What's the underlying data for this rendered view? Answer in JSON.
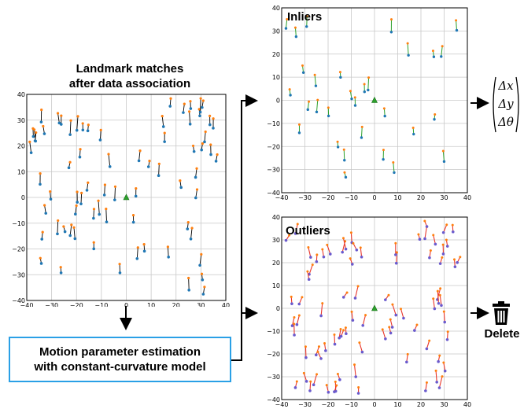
{
  "title": {
    "line1": "Landmark matches",
    "line2": "after data association"
  },
  "motion_box": {
    "line1": "Motion parameter estimation",
    "line2": "with constant-curvature model"
  },
  "inliers_label": "Inliers",
  "outliers_label": "Outliers",
  "output_vector": {
    "row1": "Δx",
    "row2": "Δy",
    "row3": "Δθ"
  },
  "delete_label": "Delete",
  "icons": {
    "trash": "trash-icon"
  },
  "colors": {
    "arrow_orange": "#ff7f0e",
    "point_blue": "#1f77b4",
    "inlier_green": "#2ca02c",
    "outlier_red": "#e8352a",
    "outlier_purple": "#6a5acd",
    "box_blue": "#2aa0e6"
  },
  "chart_data": [
    {
      "type": "scatter",
      "title": "Landmark matches after data association",
      "xlim": [
        -40,
        40
      ],
      "ylim": [
        -40,
        40
      ],
      "xticks": [
        -40,
        -30,
        -20,
        -10,
        0,
        10,
        20,
        30,
        40
      ],
      "yticks": [
        -40,
        -30,
        -20,
        -10,
        0,
        10,
        20,
        30,
        40
      ],
      "grid": true
    },
    {
      "type": "scatter",
      "title": "Inliers",
      "xlim": [
        -40,
        40
      ],
      "ylim": [
        -40,
        40
      ],
      "xticks": [
        -40,
        -30,
        -20,
        -10,
        0,
        10,
        20,
        30,
        40
      ],
      "yticks": [
        -40,
        -30,
        -20,
        -10,
        0,
        10,
        20,
        30,
        40
      ],
      "grid": true
    },
    {
      "type": "scatter",
      "title": "Outliers",
      "xlim": [
        -40,
        40
      ],
      "ylim": [
        -40,
        40
      ],
      "xticks": [
        -40,
        -30,
        -20,
        -10,
        0,
        10,
        20,
        30,
        40
      ],
      "yticks": [
        -40,
        -30,
        -20,
        -10,
        0,
        10,
        20,
        30,
        40
      ],
      "grid": true
    }
  ]
}
